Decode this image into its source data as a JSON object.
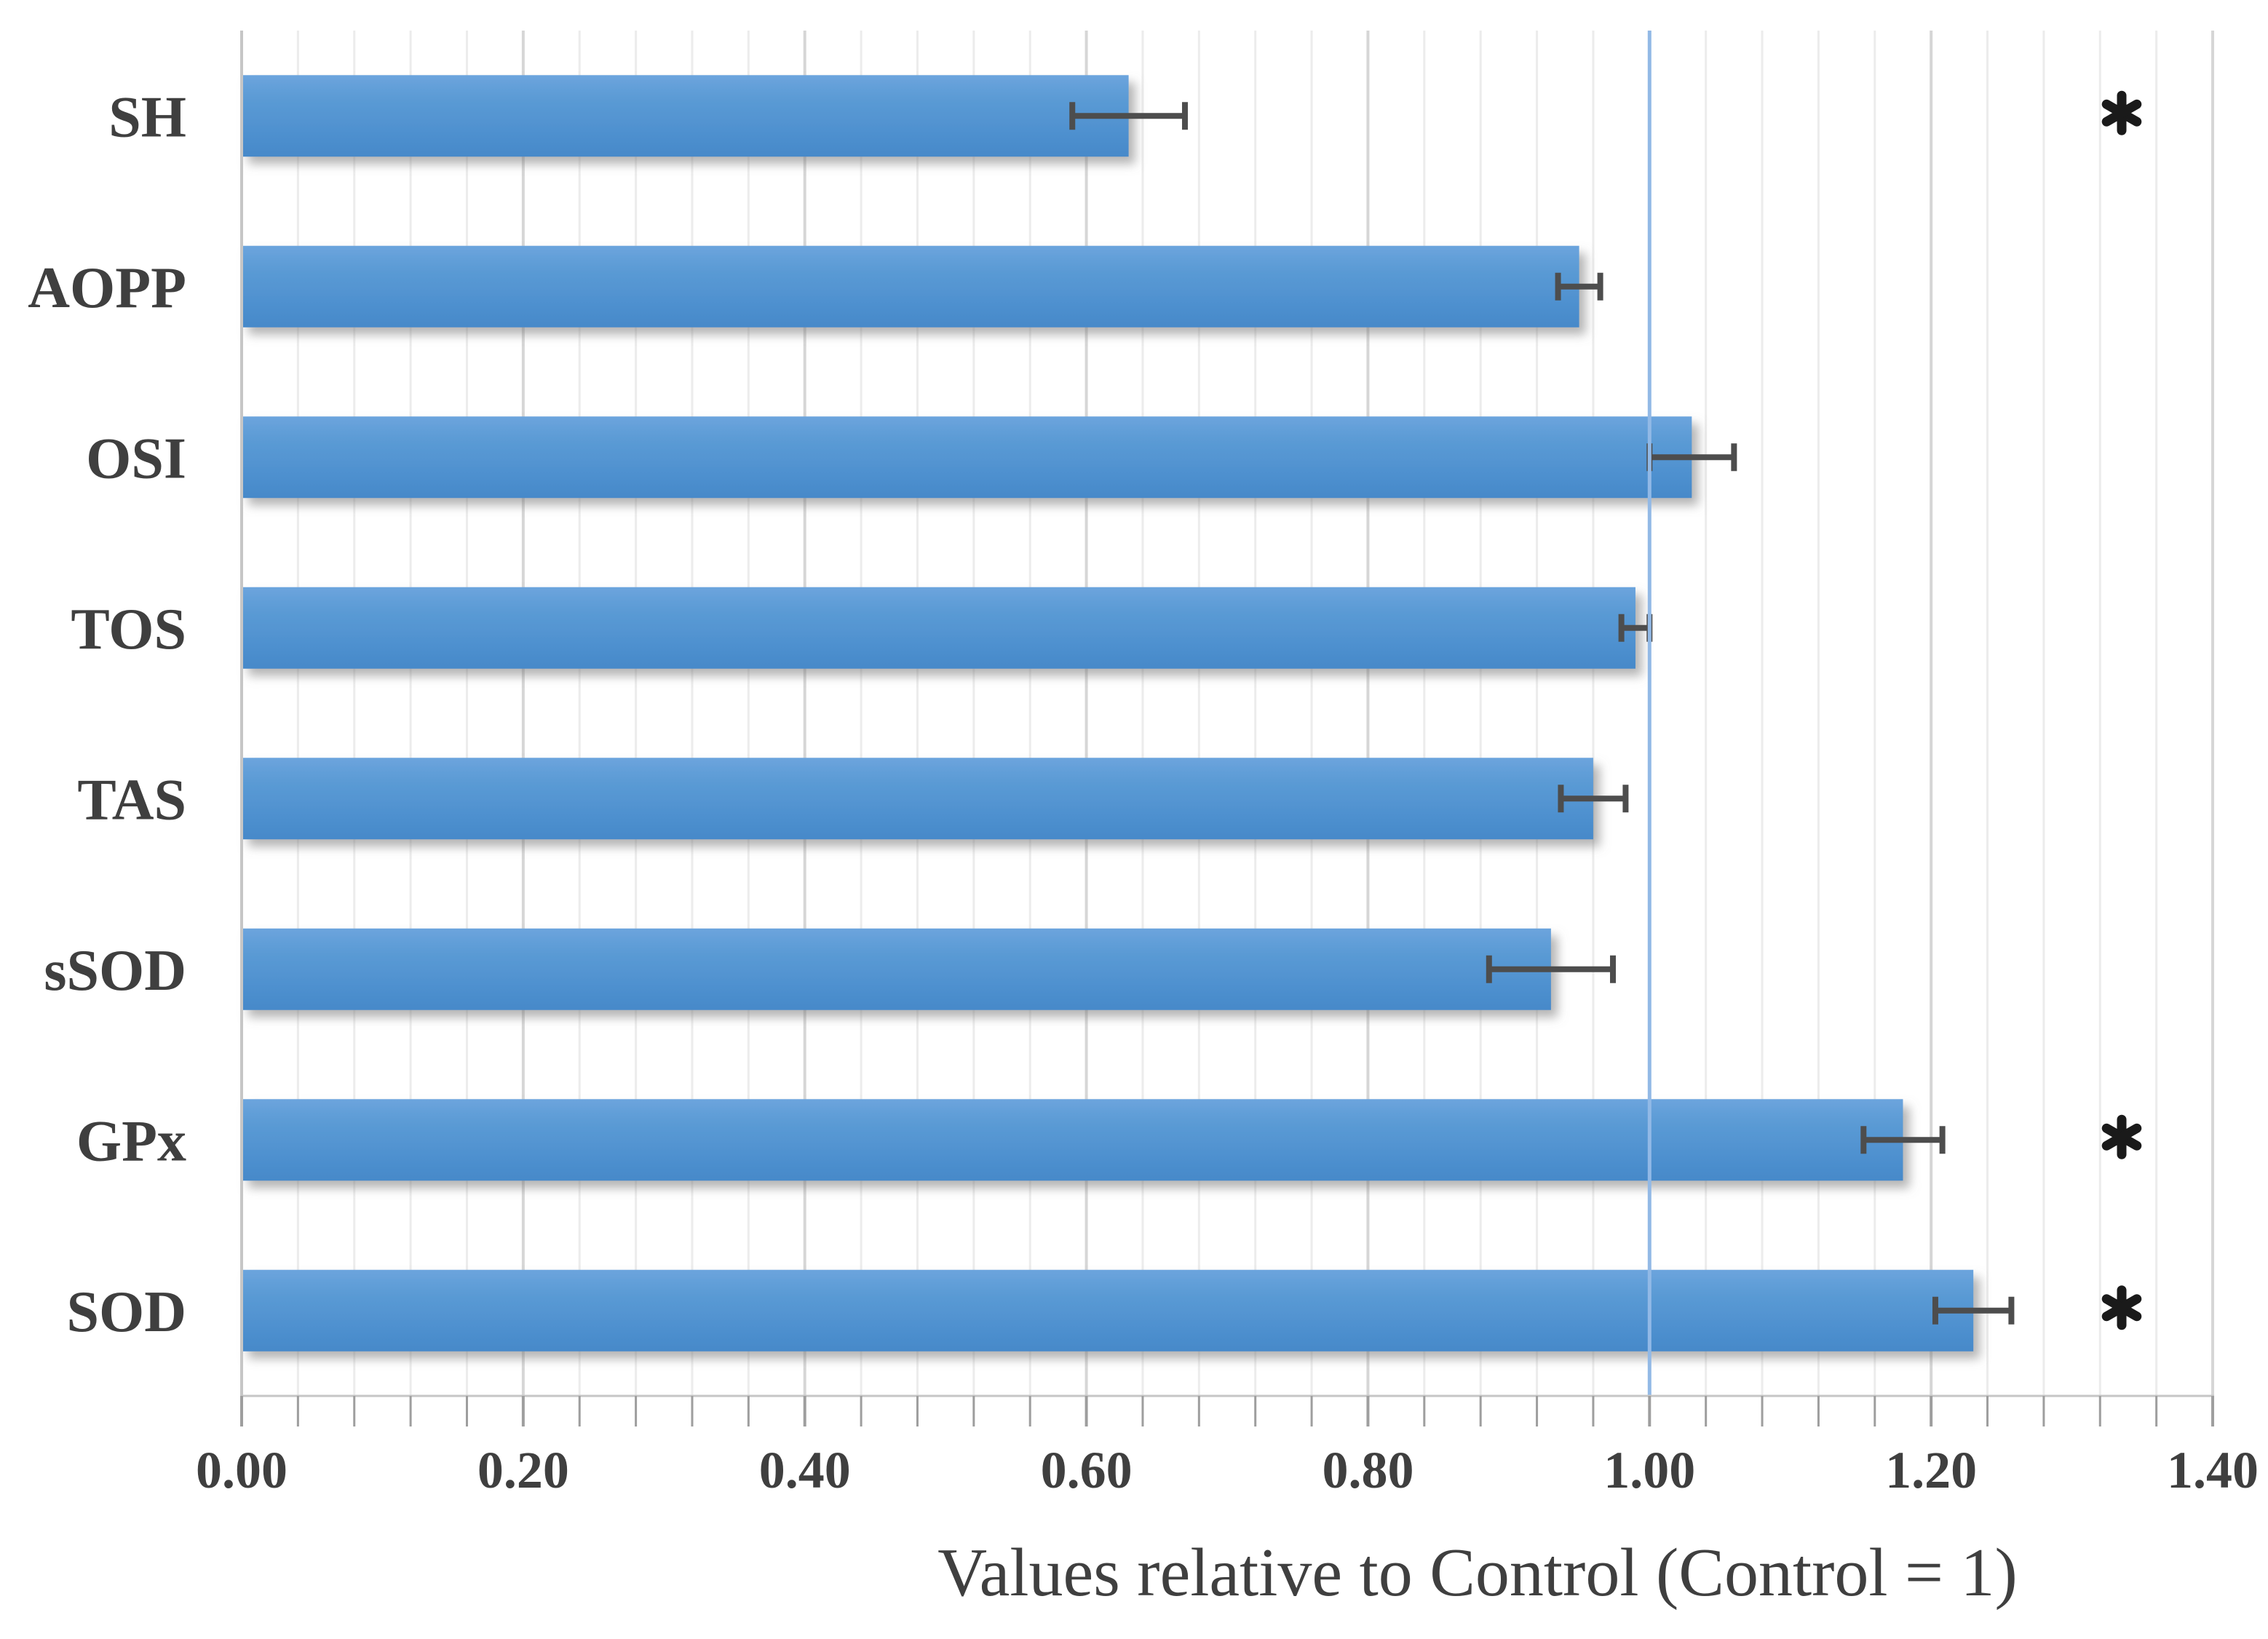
{
  "chart_data": {
    "type": "bar",
    "orientation": "horizontal",
    "categories": [
      "SH",
      "AOPP",
      "OSI",
      "TOS",
      "TAS",
      "sSOD",
      "GPx",
      "SOD"
    ],
    "values": [
      0.63,
      0.95,
      1.03,
      0.99,
      0.96,
      0.93,
      1.18,
      1.23
    ],
    "error_bars": [
      0.04,
      0.015,
      0.03,
      0.01,
      0.023,
      0.044,
      0.028,
      0.027
    ],
    "significant": [
      true,
      false,
      false,
      false,
      false,
      false,
      true,
      true
    ],
    "significance_marker": "*",
    "title": "",
    "xlabel": "Values relative to Control (Control = 1)",
    "ylabel": "",
    "x_tick_labels": [
      "0.00",
      "0.20",
      "0.40",
      "0.60",
      "0.80",
      "1.00",
      "1.20",
      "1.40"
    ],
    "x_tick_values": [
      0,
      0.2,
      0.4,
      0.6,
      0.8,
      1.0,
      1.2,
      1.4
    ],
    "xlim": [
      0,
      1.4
    ],
    "minor_grid_step": 0.04,
    "reference_line_x": 1.0,
    "grid": "vertical major and minor gridlines",
    "legend": "none",
    "colors": {
      "bar_gradient_top": "#6CA4DD",
      "bar_mid": "#5B9BD5",
      "bar_gradient_bottom": "#4689C9",
      "reference_line": "#92B9E6",
      "error_bar": "#4D4D4D",
      "asterisk": "#1A1A1A",
      "text": "#3F3F3F",
      "gridline_major": "#D6D6D6",
      "gridline_minor": "#ECECEC",
      "axis_line": "#C6C6C6",
      "tick_mark": "#9E9E9E"
    }
  }
}
